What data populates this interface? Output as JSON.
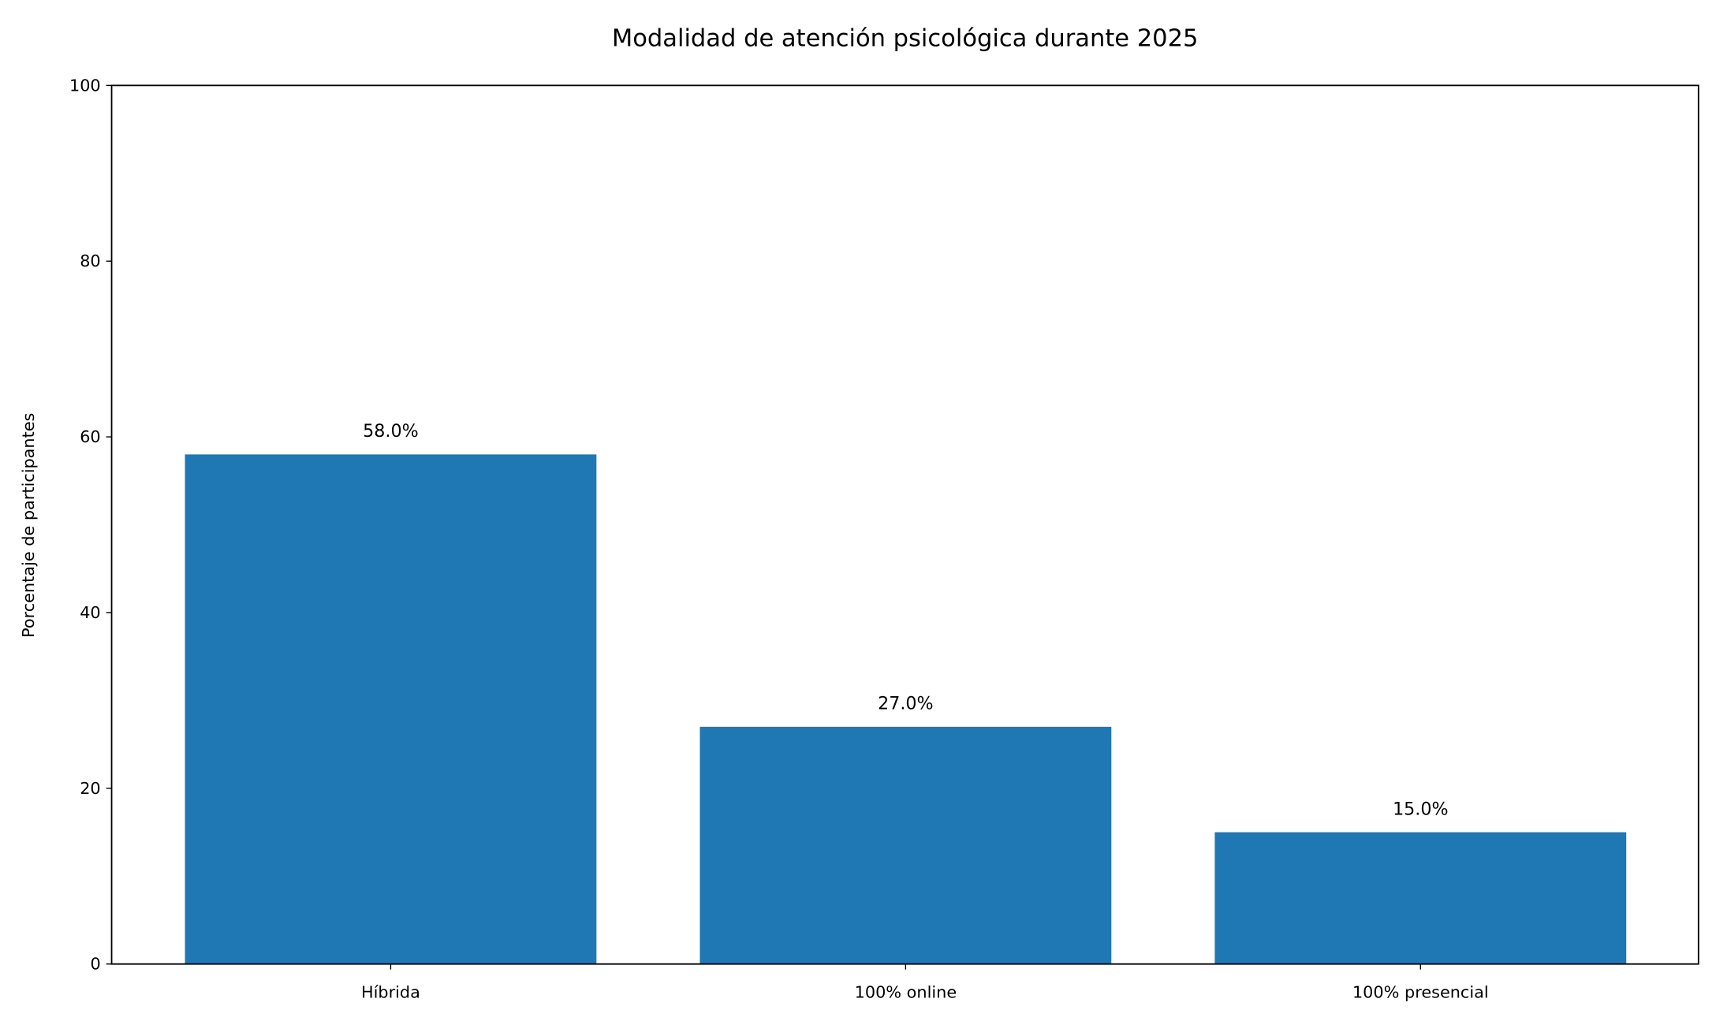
{
  "chart_data": {
    "type": "bar",
    "title": "Modalidad de atención psicológica durante 2025",
    "xlabel": "",
    "ylabel": "Porcentaje de participantes",
    "categories": [
      "Híbrida",
      "100% online",
      "100% presencial"
    ],
    "values": [
      58.0,
      27.0,
      15.0
    ],
    "data_labels": [
      "58.0%",
      "27.0%",
      "15.0%"
    ],
    "ylim": [
      0,
      100
    ],
    "yticks": [
      0,
      20,
      40,
      60,
      80,
      100
    ],
    "grid": false,
    "bar_color": "#1f77b4"
  }
}
